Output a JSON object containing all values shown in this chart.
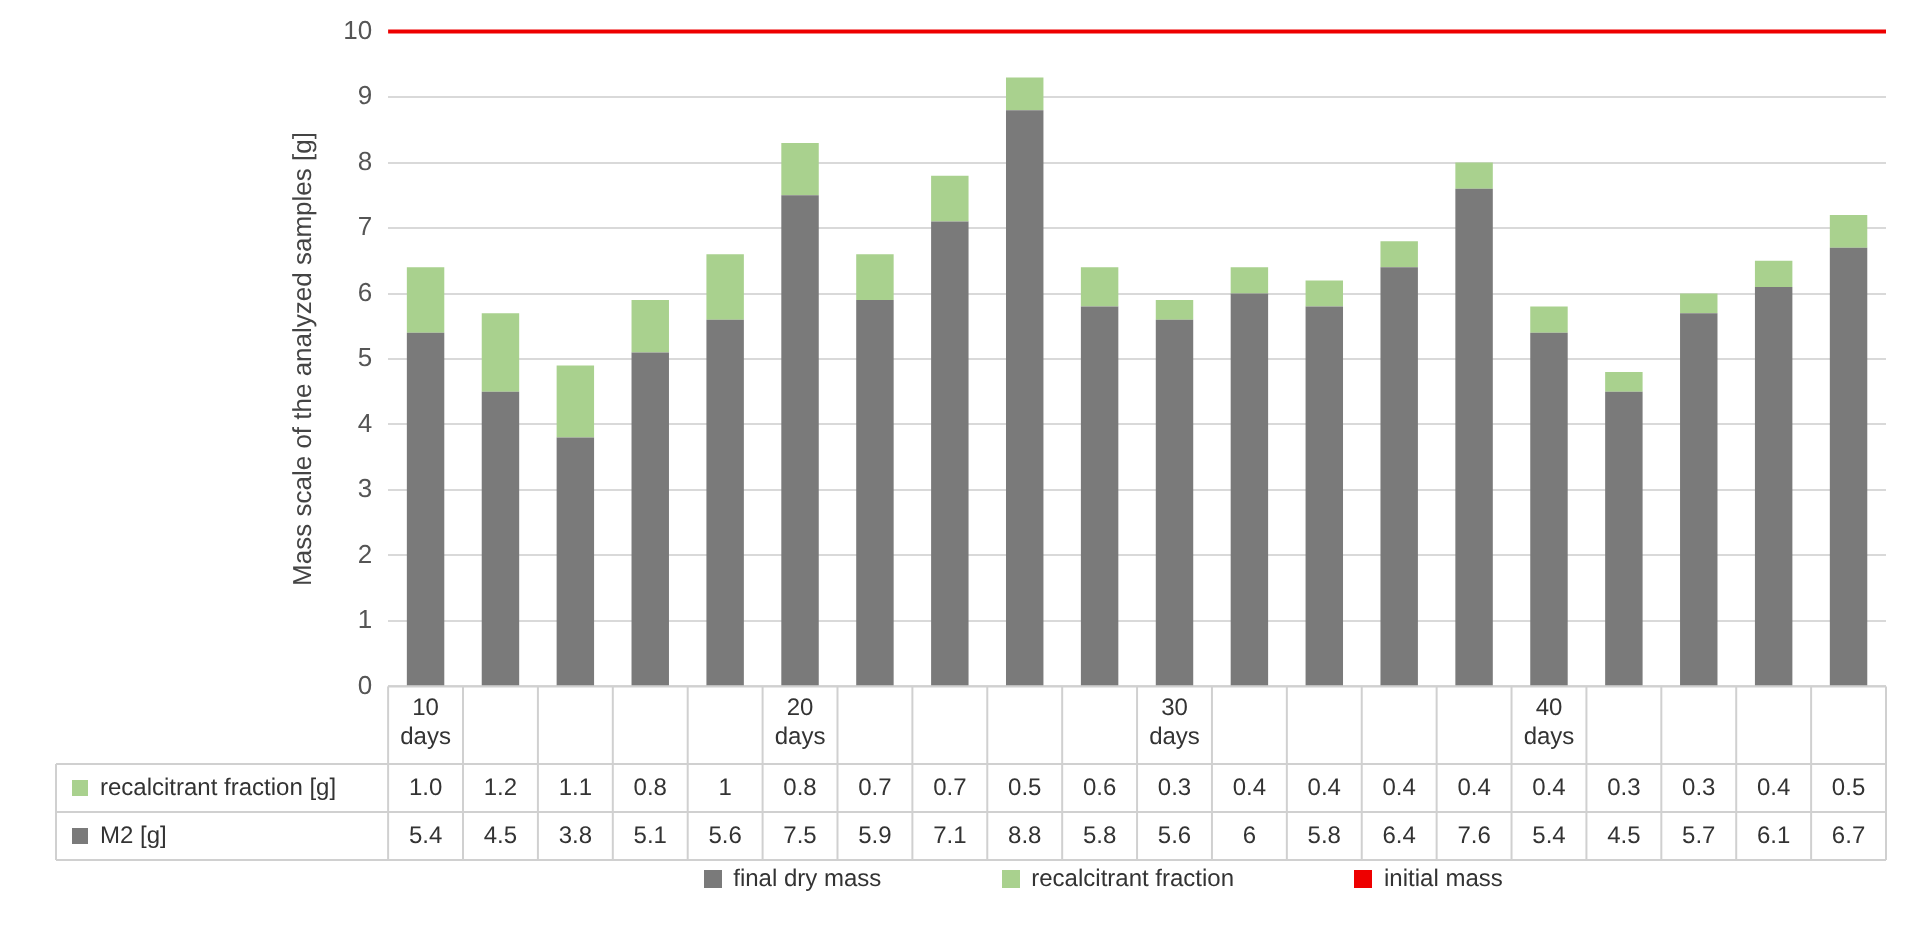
{
  "chart_data": {
    "type": "bar",
    "stacked": true,
    "ylabel": "Mass scale of the analyzed samples [g]",
    "categories": [
      "10 days",
      null,
      null,
      null,
      null,
      "20 days",
      null,
      null,
      null,
      null,
      "30 days",
      null,
      null,
      null,
      null,
      "40 days",
      null,
      null,
      null,
      null
    ],
    "series": [
      {
        "name": "final dry mass",
        "color": "#7a7a7a",
        "values": [
          5.4,
          4.5,
          3.8,
          5.1,
          5.6,
          7.5,
          5.9,
          7.1,
          8.8,
          5.8,
          5.6,
          6,
          5.8,
          6.4,
          7.6,
          5.4,
          4.5,
          5.7,
          6.1,
          6.7
        ],
        "value_labels": [
          "5.4",
          "4.5",
          "3.8",
          "5.1",
          "5.6",
          "7.5",
          "5.9",
          "7.1",
          "8.8",
          "5.8",
          "5.6",
          "6",
          "5.8",
          "6.4",
          "7.6",
          "5.4",
          "4.5",
          "5.7",
          "6.1",
          "6.7"
        ]
      },
      {
        "name": "recalcitrant fraction",
        "color": "#a9d18e",
        "values": [
          1.0,
          1.2,
          1.1,
          0.8,
          1,
          0.8,
          0.7,
          0.7,
          0.5,
          0.6,
          0.3,
          0.4,
          0.4,
          0.4,
          0.4,
          0.4,
          0.3,
          0.3,
          0.4,
          0.5
        ],
        "value_labels": [
          "1.0",
          "1.2",
          "1.1",
          "0.8",
          "1",
          "0.8",
          "0.7",
          "0.7",
          "0.5",
          "0.6",
          "0.3",
          "0.4",
          "0.4",
          "0.4",
          "0.4",
          "0.4",
          "0.3",
          "0.3",
          "0.4",
          "0.5"
        ]
      }
    ],
    "annotations": [
      "recalcitrant fraction [g]",
      "M2 [g]"
    ],
    "ref_lines": [
      {
        "axis": "y",
        "value": 10,
        "label": "initial mass",
        "color": "#ee0000"
      }
    ],
    "ylim": [
      0,
      10
    ],
    "yticks": [
      0,
      1,
      2,
      3,
      4,
      5,
      6,
      7,
      8,
      9,
      10
    ],
    "grid": "y",
    "legend": "bottom"
  }
}
